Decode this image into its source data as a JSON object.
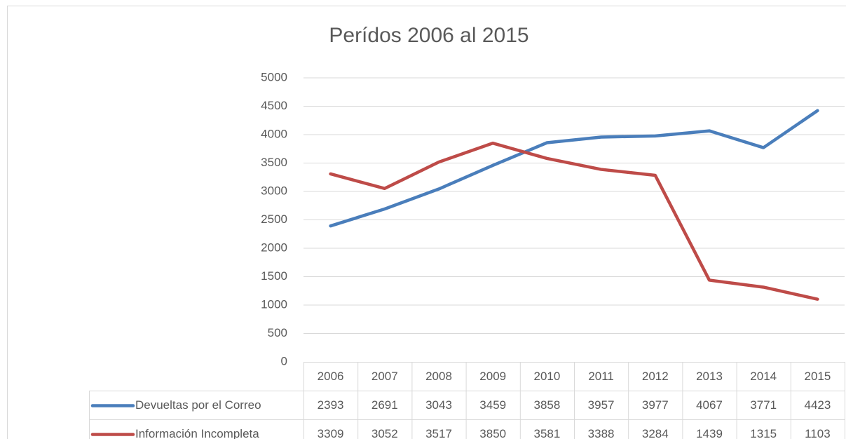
{
  "chart_data": {
    "type": "line",
    "title": "Perídos 2006 al 2015",
    "categories": [
      "2006",
      "2007",
      "2008",
      "2009",
      "2010",
      "2011",
      "2012",
      "2013",
      "2014",
      "2015"
    ],
    "series": [
      {
        "name": "Devueltas por el Correo",
        "color": "#4a7ebb",
        "values": [
          2393,
          2691,
          3043,
          3459,
          3858,
          3957,
          3977,
          4067,
          3771,
          4423
        ]
      },
      {
        "name": "Información Incompleta",
        "color": "#be4b48",
        "values": [
          3309,
          3052,
          3517,
          3850,
          3581,
          3388,
          3284,
          1439,
          1315,
          1103
        ]
      }
    ],
    "ylim": [
      0,
      5000
    ],
    "yticks": [
      0,
      500,
      1000,
      1500,
      2000,
      2500,
      3000,
      3500,
      4000,
      4500,
      5000
    ],
    "grid": true,
    "data_table": true
  }
}
